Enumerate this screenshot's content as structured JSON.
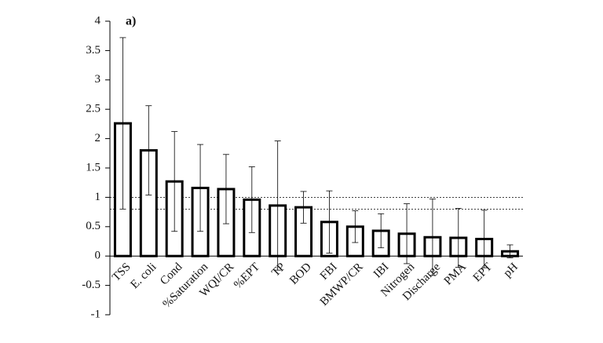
{
  "chart_data": {
    "type": "bar",
    "annotation": "a)",
    "categories": [
      "TSS",
      "E. coli",
      "Cond",
      "%Saturation",
      "WQI/CR",
      "%EPT",
      "TP",
      "BOD",
      "FBI",
      "BMWP/CR",
      "IBI",
      "Nitrogen",
      "Discharge",
      "PMA",
      "EPT",
      "pH"
    ],
    "values": [
      2.26,
      1.8,
      1.27,
      1.16,
      1.14,
      0.96,
      0.86,
      0.83,
      0.58,
      0.5,
      0.43,
      0.38,
      0.32,
      0.31,
      0.29,
      0.08
    ],
    "errors": [
      1.46,
      0.76,
      0.85,
      0.74,
      0.59,
      0.56,
      1.1,
      0.27,
      0.53,
      0.27,
      0.29,
      0.51,
      0.65,
      0.5,
      0.49,
      0.11
    ],
    "color": "#ffffff",
    "edge_color": "#000000",
    "reference_lines": [
      1,
      0.8
    ],
    "ylim": [
      -1,
      4
    ],
    "yticks": [
      -1,
      -0.5,
      0,
      0.5,
      1,
      1.5,
      2,
      2.5,
      3,
      3.5,
      4
    ]
  }
}
